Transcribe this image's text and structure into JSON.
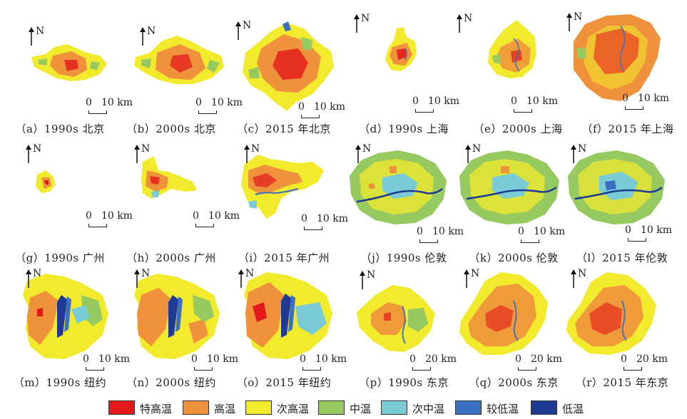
{
  "legend": {
    "items": [
      {
        "label": "特高温",
        "color": "#e3191c"
      },
      {
        "label": "高温",
        "color": "#f0923b"
      },
      {
        "label": "次高温",
        "color": "#f2ea2c"
      },
      {
        "label": "中温",
        "color": "#97c961"
      },
      {
        "label": "次中温",
        "color": "#79cbd6"
      },
      {
        "label": "较低温",
        "color": "#3b6fc1"
      },
      {
        "label": "低温",
        "color": "#1e3a93"
      }
    ]
  },
  "north_label": "N",
  "scale_zero": "0",
  "panels": [
    {
      "caption": "（a）1990s 北京",
      "scale": "10 km"
    },
    {
      "caption": "（b）2000s 北京",
      "scale": "10 km"
    },
    {
      "caption": "（c）2015 年北京",
      "scale": "10 km"
    },
    {
      "caption": "（d）1990s 上海",
      "scale": "10 km"
    },
    {
      "caption": "（e）2000s 上海",
      "scale": "10 km"
    },
    {
      "caption": "（f）2015 年上海",
      "scale": "10 km"
    },
    {
      "caption": "（g）1990s 广州",
      "scale": "10 km"
    },
    {
      "caption": "（h）2000s 广州",
      "scale": "10 km"
    },
    {
      "caption": "（i）2015 年广州",
      "scale": "10 km"
    },
    {
      "caption": "（j）1990s 伦敦",
      "scale": "10 km"
    },
    {
      "caption": "（k）2000s 伦敦",
      "scale": "10 km"
    },
    {
      "caption": "（l）2015 年伦敦",
      "scale": "10 km"
    },
    {
      "caption": "（m）1990s 纽约",
      "scale": "10 km"
    },
    {
      "caption": "（n）2000s 纽约",
      "scale": "10 km"
    },
    {
      "caption": "（o）2015 年纽约",
      "scale": "10 km"
    },
    {
      "caption": "（p）1990s 东京",
      "scale": "20 km"
    },
    {
      "caption": "（q）2000s 东京",
      "scale": "20 km"
    },
    {
      "caption": "（r）2015 年东京",
      "scale": "20 km"
    }
  ]
}
